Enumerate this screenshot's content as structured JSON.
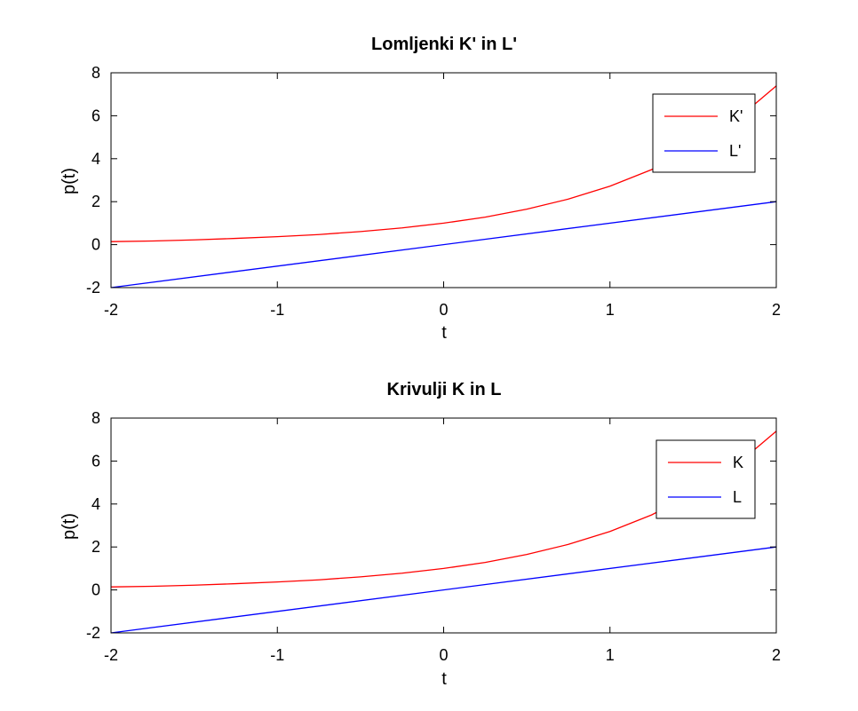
{
  "chart_data": [
    {
      "type": "line",
      "title": "Lomljenki K' in L'",
      "xlabel": "t",
      "ylabel": "p(t)",
      "xlim": [
        -2,
        2
      ],
      "ylim": [
        -2,
        8
      ],
      "xticks": [
        -2,
        -1,
        0,
        1,
        2
      ],
      "xtick_labels": [
        "-2",
        "-1",
        "0",
        "1",
        "2"
      ],
      "yticks": [
        -2,
        0,
        2,
        4,
        6,
        8
      ],
      "ytick_labels": [
        "-2",
        "0",
        "2",
        "4",
        "6",
        "8"
      ],
      "grid": false,
      "legend_position": "top-right",
      "series": [
        {
          "name": "K'",
          "color": "#ff0000",
          "x": [
            -2,
            -1.75,
            -1.5,
            -1.25,
            -1,
            -0.75,
            -0.5,
            -0.25,
            0,
            0.25,
            0.5,
            0.75,
            1,
            1.25,
            1.5,
            1.75,
            2
          ],
          "y": [
            0.14,
            0.17,
            0.22,
            0.29,
            0.37,
            0.47,
            0.61,
            0.78,
            1.0,
            1.28,
            1.65,
            2.12,
            2.72,
            3.49,
            4.48,
            5.75,
            7.39
          ]
        },
        {
          "name": "L'",
          "color": "#0000ff",
          "x": [
            -2,
            2
          ],
          "y": [
            -2,
            2
          ]
        }
      ]
    },
    {
      "type": "line",
      "title": "Krivulji K in L",
      "xlabel": "t",
      "ylabel": "p(t)",
      "xlim": [
        -2,
        2
      ],
      "ylim": [
        -2,
        8
      ],
      "xticks": [
        -2,
        -1,
        0,
        1,
        2
      ],
      "xtick_labels": [
        "-2",
        "-1",
        "0",
        "1",
        "2"
      ],
      "yticks": [
        -2,
        0,
        2,
        4,
        6,
        8
      ],
      "ytick_labels": [
        "-2",
        "0",
        "2",
        "4",
        "6",
        "8"
      ],
      "grid": false,
      "legend_position": "top-right",
      "series": [
        {
          "name": "K",
          "color": "#ff0000",
          "x": [
            -2,
            -1.75,
            -1.5,
            -1.25,
            -1,
            -0.75,
            -0.5,
            -0.25,
            0,
            0.25,
            0.5,
            0.75,
            1,
            1.25,
            1.5,
            1.75,
            2
          ],
          "y": [
            0.14,
            0.17,
            0.22,
            0.29,
            0.37,
            0.47,
            0.61,
            0.78,
            1.0,
            1.28,
            1.65,
            2.12,
            2.72,
            3.49,
            4.48,
            5.75,
            7.39
          ]
        },
        {
          "name": "L",
          "color": "#0000ff",
          "x": [
            -2,
            2
          ],
          "y": [
            -2,
            2
          ]
        }
      ]
    }
  ]
}
